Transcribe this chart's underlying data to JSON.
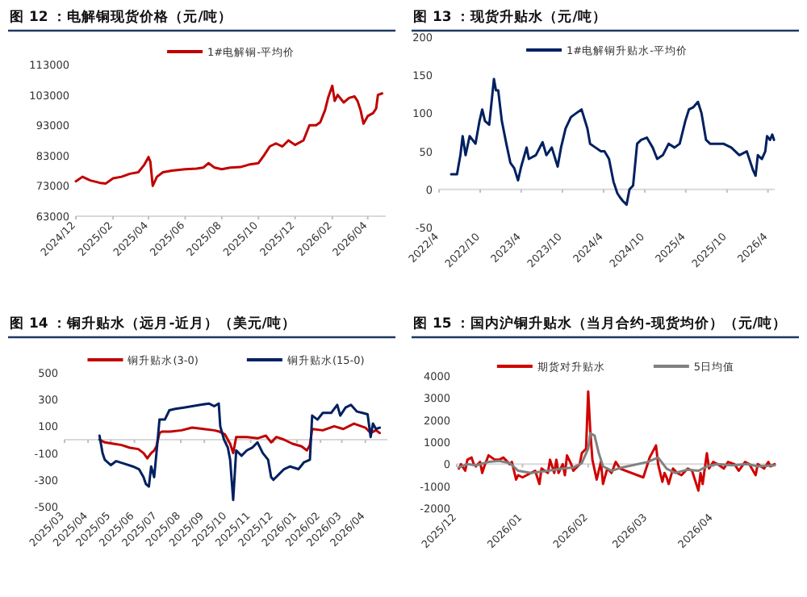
{
  "chart_data": [
    {
      "type": "line",
      "title": "图 12 ：电解铜现货价格（元/吨）",
      "legend": "top",
      "xlim": [
        "2024-12-01",
        "2026-05-01"
      ],
      "ylim": [
        63000,
        113000
      ],
      "yticks": [
        63000,
        73000,
        83000,
        93000,
        103000,
        113000
      ],
      "xticks": [
        {
          "value": "2024-12-01",
          "label": "2024/12"
        },
        {
          "value": "2025-02-01",
          "label": "2025/02"
        },
        {
          "value": "2025-04-01",
          "label": "2025/04"
        },
        {
          "value": "2025-06-01",
          "label": "2025/06"
        },
        {
          "value": "2025-08-01",
          "label": "2025/08"
        },
        {
          "value": "2025-10-01",
          "label": "2025/10"
        },
        {
          "value": "2025-12-01",
          "label": "2025/12"
        },
        {
          "value": "2026-02-01",
          "label": "2026/02"
        },
        {
          "value": "2026-04-01",
          "label": "2026/04"
        }
      ],
      "series": [
        {
          "name": "1#电解铜-平均价",
          "color": "#c00000",
          "x": [
            "2024-12-01",
            "2024-12-12",
            "2024-12-25",
            "2025-01-10",
            "2025-01-20",
            "2025-02-01",
            "2025-02-15",
            "2025-03-01",
            "2025-03-15",
            "2025-03-25",
            "2025-04-01",
            "2025-04-04",
            "2025-04-08",
            "2025-04-15",
            "2025-04-25",
            "2025-05-10",
            "2025-06-01",
            "2025-06-20",
            "2025-07-01",
            "2025-07-10",
            "2025-07-20",
            "2025-08-01",
            "2025-08-15",
            "2025-09-01",
            "2025-09-15",
            "2025-10-01",
            "2025-10-10",
            "2025-10-20",
            "2025-10-30",
            "2025-11-10",
            "2025-11-20",
            "2025-12-01",
            "2025-12-15",
            "2025-12-25",
            "2026-01-05",
            "2026-01-12",
            "2026-01-20",
            "2026-01-25",
            "2026-02-01",
            "2026-02-05",
            "2026-02-10",
            "2026-02-20",
            "2026-03-01",
            "2026-03-10",
            "2026-03-15",
            "2026-03-20",
            "2026-03-25",
            "2026-04-01",
            "2026-04-10",
            "2026-04-15",
            "2026-04-18",
            "2026-04-25"
          ],
          "values": [
            74500,
            76000,
            74800,
            74000,
            73800,
            75500,
            76000,
            77000,
            77500,
            80000,
            82500,
            81000,
            73000,
            76000,
            77500,
            78000,
            78500,
            78700,
            79000,
            80500,
            79000,
            78500,
            79000,
            79200,
            80000,
            80500,
            83000,
            86000,
            87000,
            86000,
            88000,
            86500,
            88000,
            93000,
            93000,
            94000,
            98000,
            102000,
            106000,
            101000,
            103000,
            100500,
            102000,
            102500,
            101000,
            98000,
            93500,
            96000,
            97000,
            98500,
            103000,
            103500
          ]
        }
      ]
    },
    {
      "type": "line",
      "title": "图 13 ：现货升贴水（元/吨）",
      "legend": "top",
      "xlim": [
        "2022-04-01",
        "2026-05-01"
      ],
      "ylim": [
        -50,
        200
      ],
      "yticks": [
        -50,
        0,
        50,
        100,
        150,
        200
      ],
      "xticks": [
        {
          "value": "2022-04-01",
          "label": "2022/4"
        },
        {
          "value": "2022-10-01",
          "label": "2022/10"
        },
        {
          "value": "2023-04-01",
          "label": "2023/4"
        },
        {
          "value": "2023-10-01",
          "label": "2023/10"
        },
        {
          "value": "2024-04-01",
          "label": "2024/4"
        },
        {
          "value": "2024-10-01",
          "label": "2024/10"
        },
        {
          "value": "2025-04-01",
          "label": "2025/4"
        },
        {
          "value": "2025-10-01",
          "label": "2025/10"
        },
        {
          "value": "2026-04-01",
          "label": "2026/4"
        }
      ],
      "series": [
        {
          "name": "1#电解铜升贴水-平均价",
          "color": "#002060",
          "x": [
            "2022-05-25",
            "2022-06-20",
            "2022-07-05",
            "2022-07-15",
            "2022-07-28",
            "2022-08-15",
            "2022-09-10",
            "2022-09-28",
            "2022-10-10",
            "2022-10-22",
            "2022-11-10",
            "2022-12-01",
            "2022-12-10",
            "2022-12-20",
            "2023-01-05",
            "2023-01-25",
            "2023-02-12",
            "2023-03-01",
            "2023-03-18",
            "2023-04-01",
            "2023-04-25",
            "2023-05-05",
            "2023-06-05",
            "2023-07-05",
            "2023-07-22",
            "2023-08-15",
            "2023-09-10",
            "2023-09-25",
            "2023-10-15",
            "2023-11-08",
            "2023-12-01",
            "2023-12-25",
            "2024-01-20",
            "2024-02-01",
            "2024-02-25",
            "2024-03-20",
            "2024-04-05",
            "2024-04-25",
            "2024-05-15",
            "2024-06-01",
            "2024-06-12",
            "2024-06-25",
            "2024-07-12",
            "2024-07-25",
            "2024-08-10",
            "2024-08-28",
            "2024-09-15",
            "2024-10-10",
            "2024-11-05",
            "2024-11-25",
            "2024-12-20",
            "2025-01-15",
            "2025-02-10",
            "2025-03-05",
            "2025-03-30",
            "2025-04-15",
            "2025-05-05",
            "2025-05-25",
            "2025-06-10",
            "2025-06-30",
            "2025-07-18",
            "2025-08-10",
            "2025-09-15",
            "2025-10-20",
            "2025-11-25",
            "2025-12-28",
            "2026-01-25",
            "2026-02-05",
            "2026-02-15",
            "2026-03-05",
            "2026-03-20",
            "2026-03-28",
            "2026-04-10",
            "2026-04-20",
            "2026-04-28"
          ],
          "values": [
            20,
            20,
            45,
            70,
            45,
            70,
            60,
            90,
            105,
            90,
            85,
            145,
            130,
            130,
            90,
            60,
            35,
            28,
            12,
            30,
            55,
            40,
            45,
            62,
            45,
            55,
            30,
            55,
            80,
            95,
            100,
            105,
            80,
            60,
            55,
            50,
            50,
            40,
            10,
            -5,
            -10,
            -15,
            -20,
            0,
            5,
            60,
            65,
            68,
            55,
            40,
            45,
            60,
            55,
            60,
            90,
            105,
            108,
            115,
            100,
            65,
            60,
            60,
            60,
            55,
            45,
            50,
            25,
            18,
            45,
            40,
            50,
            70,
            65,
            72,
            65
          ]
        }
      ]
    },
    {
      "type": "line",
      "title": "图 14 ：铜升贴水（远月-近月）（美元/吨）",
      "legend": "top",
      "xlim": [
        "2025-03-01",
        "2026-04-30"
      ],
      "ylim": [
        -500,
        500
      ],
      "yticks": [
        -500,
        -300,
        -100,
        100,
        300,
        500
      ],
      "xticks": [
        {
          "value": "2025-03-01",
          "label": "2025/03"
        },
        {
          "value": "2025-04-01",
          "label": "2025/04"
        },
        {
          "value": "2025-05-01",
          "label": "2025/05"
        },
        {
          "value": "2025-06-01",
          "label": "2025/06"
        },
        {
          "value": "2025-07-01",
          "label": "2025/07"
        },
        {
          "value": "2025-08-01",
          "label": "2025/08"
        },
        {
          "value": "2025-09-01",
          "label": "2025/09"
        },
        {
          "value": "2025-10-01",
          "label": "2025/10"
        },
        {
          "value": "2025-11-01",
          "label": "2025/11"
        },
        {
          "value": "2025-12-01",
          "label": "2025/12"
        },
        {
          "value": "2026-01-01",
          "label": "2026/01"
        },
        {
          "value": "2026-02-01",
          "label": "2026/02"
        },
        {
          "value": "2026-03-01",
          "label": "2026/03"
        },
        {
          "value": "2026-04-01",
          "label": "2026/04"
        }
      ],
      "series": [
        {
          "name": "铜升贴水(3-0)",
          "color": "#c00000",
          "x": [
            "2025-04-16",
            "2025-04-23",
            "2025-05-04",
            "2025-05-15",
            "2025-05-26",
            "2025-06-06",
            "2025-06-13",
            "2025-06-18",
            "2025-06-23",
            "2025-06-27",
            "2025-06-30",
            "2025-07-04",
            "2025-07-07",
            "2025-07-18",
            "2025-08-02",
            "2025-08-16",
            "2025-08-31",
            "2025-09-14",
            "2025-09-21",
            "2025-09-28",
            "2025-10-05",
            "2025-10-09",
            "2025-10-13",
            "2025-10-27",
            "2025-11-10",
            "2025-11-21",
            "2025-11-28",
            "2025-12-05",
            "2025-12-15",
            "2025-12-26",
            "2026-01-07",
            "2026-01-14",
            "2026-01-18",
            "2026-01-21",
            "2026-02-04",
            "2026-02-19",
            "2026-03-03",
            "2026-03-17",
            "2026-04-01",
            "2026-04-08",
            "2026-04-15",
            "2026-04-20"
          ],
          "values": [
            0,
            -20,
            -30,
            -40,
            -60,
            -70,
            -100,
            -140,
            -100,
            -80,
            -50,
            50,
            60,
            60,
            70,
            90,
            80,
            70,
            60,
            40,
            -30,
            -100,
            20,
            20,
            10,
            30,
            -20,
            20,
            0,
            -30,
            -50,
            -80,
            -40,
            80,
            70,
            100,
            80,
            120,
            90,
            50,
            70,
            50
          ]
        },
        {
          "name": "铜升贴水(15-0)",
          "color": "#002060",
          "x": [
            "2025-04-16",
            "2025-04-20",
            "2025-04-23",
            "2025-05-01",
            "2025-05-08",
            "2025-05-19",
            "2025-05-30",
            "2025-06-07",
            "2025-06-13",
            "2025-06-16",
            "2025-06-20",
            "2025-06-23",
            "2025-06-27",
            "2025-06-30",
            "2025-07-04",
            "2025-07-11",
            "2025-07-17",
            "2025-07-25",
            "2025-08-05",
            "2025-08-16",
            "2025-08-27",
            "2025-09-07",
            "2025-09-14",
            "2025-09-20",
            "2025-09-22",
            "2025-09-27",
            "2025-10-02",
            "2025-10-05",
            "2025-10-09",
            "2025-10-13",
            "2025-10-20",
            "2025-10-27",
            "2025-11-03",
            "2025-11-10",
            "2025-11-17",
            "2025-11-24",
            "2025-11-28",
            "2025-12-01",
            "2025-12-08",
            "2025-12-15",
            "2025-12-23",
            "2026-01-03",
            "2026-01-10",
            "2026-01-18",
            "2026-01-21",
            "2026-01-28",
            "2026-02-04",
            "2026-02-15",
            "2026-02-23",
            "2026-02-27",
            "2026-03-06",
            "2026-03-13",
            "2026-03-21",
            "2026-03-28",
            "2026-04-04",
            "2026-04-08",
            "2026-04-11",
            "2026-04-15",
            "2026-04-20"
          ],
          "values": [
            30,
            -100,
            -150,
            -190,
            -160,
            -180,
            -200,
            -220,
            -280,
            -330,
            -350,
            -200,
            -280,
            -100,
            150,
            150,
            220,
            230,
            240,
            250,
            260,
            270,
            250,
            270,
            100,
            0,
            -60,
            -150,
            -450,
            -80,
            -120,
            -80,
            -60,
            -20,
            -100,
            -150,
            -280,
            -300,
            -260,
            -220,
            -200,
            -220,
            -170,
            -150,
            180,
            150,
            200,
            200,
            260,
            180,
            240,
            260,
            210,
            200,
            190,
            20,
            120,
            80,
            90
          ]
        }
      ]
    },
    {
      "type": "line",
      "title": "图 15 ：国内沪铜升贴水（当月合约-现货均价）（元/吨）",
      "legend": "top",
      "xlim": [
        "2025-12-01",
        "2026-04-30"
      ],
      "ylim": [
        -2000,
        4000
      ],
      "yticks": [
        -2000,
        -1000,
        0,
        1000,
        2000,
        3000,
        4000
      ],
      "xticks": [
        {
          "value": "2025-12-01",
          "label": "2025/12"
        },
        {
          "value": "2026-01-01",
          "label": "2026/01"
        },
        {
          "value": "2026-02-01",
          "label": "2026/02"
        },
        {
          "value": "2026-03-01",
          "label": "2026/03"
        },
        {
          "value": "2026-04-01",
          "label": "2026/04"
        }
      ],
      "series": [
        {
          "name": "期货对升贴水",
          "color": "#d00000",
          "x": [
            "2025-12-02",
            "2025-12-03",
            "2025-12-05",
            "2025-12-06",
            "2025-12-08",
            "2025-12-09",
            "2025-12-10",
            "2025-12-12",
            "2025-12-13",
            "2025-12-14",
            "2025-12-16",
            "2025-12-19",
            "2025-12-21",
            "2025-12-23",
            "2025-12-26",
            "2025-12-27",
            "2025-12-29",
            "2025-12-30",
            "2026-01-01",
            "2026-01-03",
            "2026-01-07",
            "2026-01-09",
            "2026-01-10",
            "2026-01-13",
            "2026-01-14",
            "2026-01-16",
            "2026-01-17",
            "2026-01-18",
            "2026-01-20",
            "2026-01-21",
            "2026-01-22",
            "2026-01-24",
            "2026-01-25",
            "2026-01-28",
            "2026-01-29",
            "2026-01-31",
            "2026-02-01",
            "2026-02-02",
            "2026-02-03",
            "2026-02-05",
            "2026-02-07",
            "2026-02-08",
            "2026-02-10",
            "2026-02-12",
            "2026-02-14",
            "2026-02-16",
            "2026-02-27",
            "2026-03-01",
            "2026-03-02",
            "2026-03-05",
            "2026-03-06",
            "2026-03-08",
            "2026-03-09",
            "2026-03-10",
            "2026-03-11",
            "2026-03-13",
            "2026-03-15",
            "2026-03-17",
            "2026-03-20",
            "2026-03-22",
            "2026-03-25",
            "2026-03-26",
            "2026-03-27",
            "2026-03-29",
            "2026-03-30",
            "2026-04-01",
            "2026-04-03",
            "2026-04-06",
            "2026-04-08",
            "2026-04-11",
            "2026-04-13",
            "2026-04-16",
            "2026-04-18",
            "2026-04-21",
            "2026-04-22",
            "2026-04-25",
            "2026-04-27",
            "2026-04-28",
            "2026-04-30"
          ],
          "values": [
            -200,
            0,
            -300,
            200,
            300,
            0,
            -100,
            100,
            -400,
            -100,
            400,
            200,
            200,
            300,
            0,
            100,
            -700,
            -500,
            -600,
            -500,
            -300,
            -900,
            -200,
            -400,
            200,
            -400,
            200,
            -400,
            0,
            -500,
            400,
            0,
            -300,
            0,
            500,
            700,
            3300,
            1500,
            200,
            -700,
            100,
            -900,
            -200,
            -400,
            100,
            -200,
            -600,
            0,
            300,
            850,
            0,
            -800,
            -400,
            -600,
            -900,
            -200,
            -400,
            -500,
            -200,
            -300,
            -1200,
            -400,
            -900,
            500,
            -200,
            100,
            0,
            -200,
            100,
            0,
            -300,
            100,
            0,
            -500,
            0,
            -200,
            100,
            -100,
            0
          ]
        },
        {
          "name": "5日均值",
          "color": "#808080",
          "x": [
            "2025-12-02",
            "2025-12-06",
            "2025-12-10",
            "2025-12-16",
            "2025-12-21",
            "2025-12-26",
            "2025-12-30",
            "2026-01-05",
            "2026-01-13",
            "2026-01-20",
            "2026-01-25",
            "2026-01-29",
            "2026-02-01",
            "2026-02-02",
            "2026-02-04",
            "2026-02-06",
            "2026-02-08",
            "2026-02-12",
            "2026-02-17",
            "2026-03-01",
            "2026-03-06",
            "2026-03-10",
            "2026-03-14",
            "2026-03-20",
            "2026-03-25",
            "2026-03-29",
            "2026-04-03",
            "2026-04-10",
            "2026-04-17",
            "2026-04-22",
            "2026-04-30"
          ],
          "values": [
            -150,
            0,
            -50,
            100,
            150,
            50,
            -300,
            -400,
            -300,
            -200,
            -150,
            50,
            700,
            1400,
            1300,
            500,
            -100,
            -300,
            -150,
            100,
            300,
            -200,
            -400,
            -250,
            -300,
            -100,
            0,
            -50,
            0,
            -100,
            -50
          ]
        }
      ]
    }
  ]
}
